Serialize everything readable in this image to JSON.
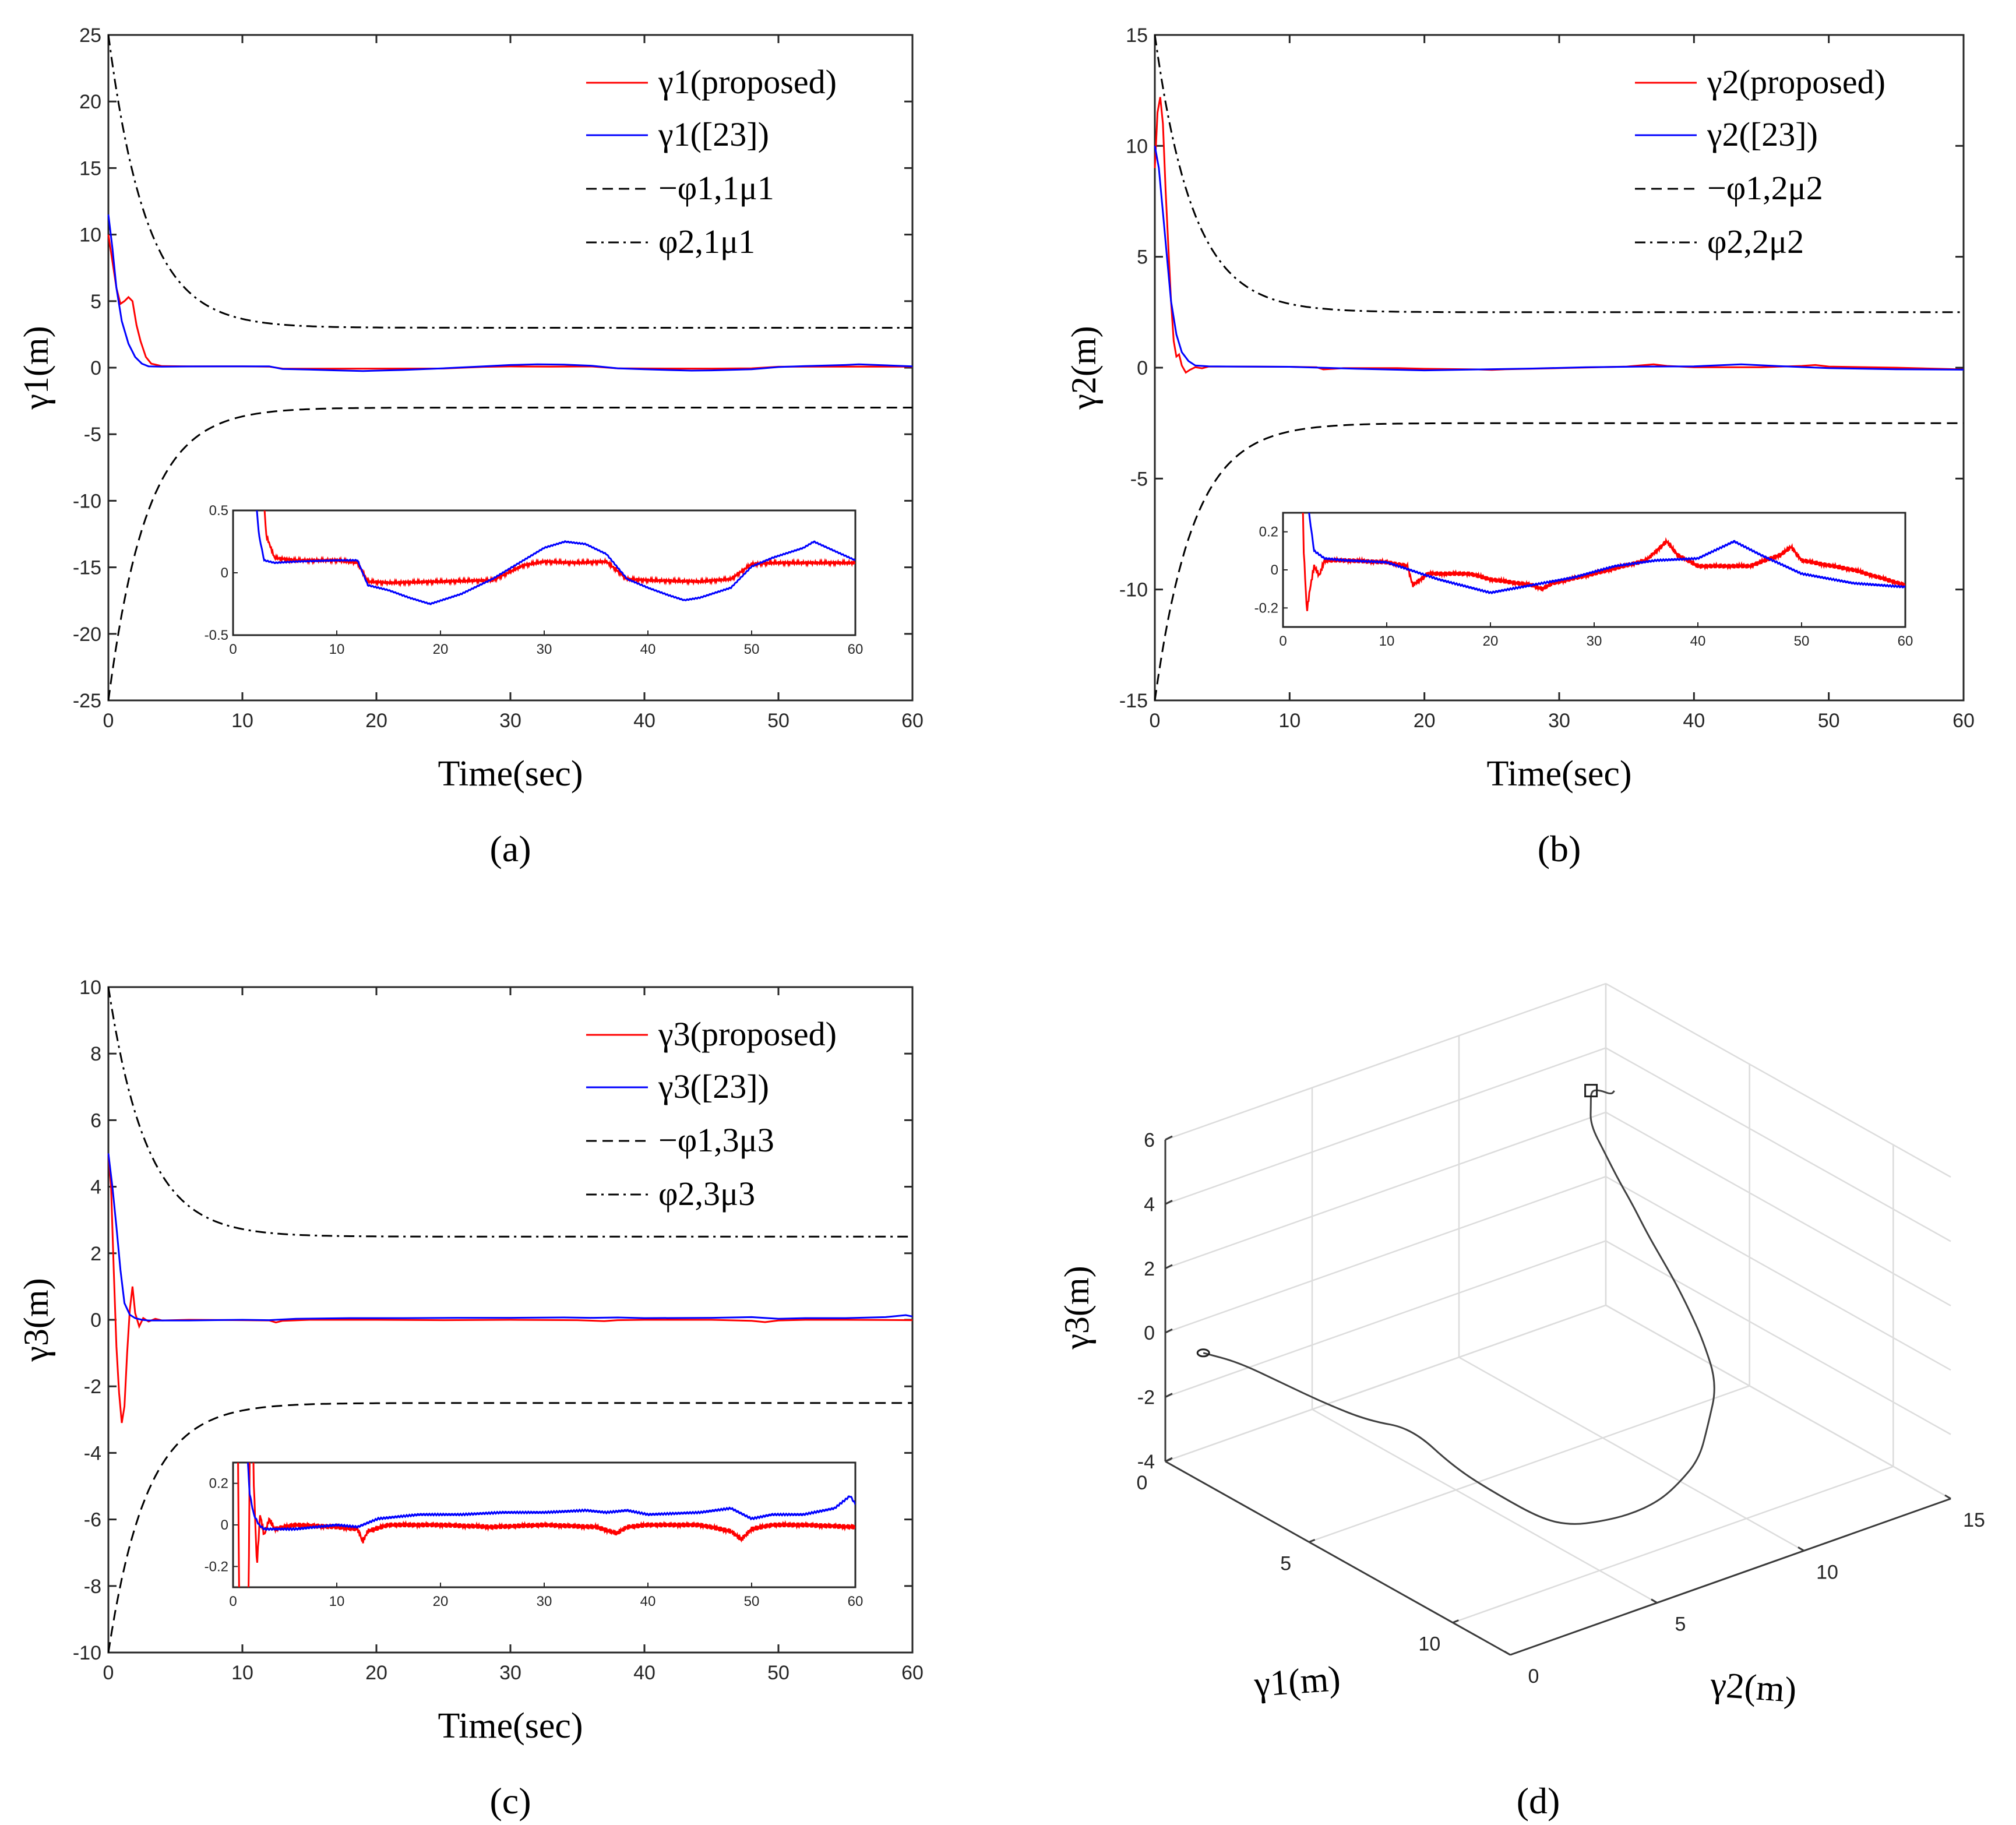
{
  "chart_data": [
    {
      "type": "line",
      "panel": "a",
      "caption": "(a)",
      "xlabel": "Time(sec)",
      "ylabel": "γ1(m)",
      "xlim": [
        0,
        60
      ],
      "ylim": [
        -25,
        25
      ],
      "xticks": [
        "0",
        "10",
        "20",
        "30",
        "40",
        "50",
        "60"
      ],
      "yticks": [
        "-25",
        "-20",
        "-15",
        "-10",
        "-5",
        "0",
        "5",
        "10",
        "15",
        "20",
        "25"
      ],
      "A": 25,
      "B": 3,
      "k": 0.35,
      "legend": [
        "γ1(proposed)",
        "γ1([23])",
        "−φ1,1μ1",
        "φ2,1μ1"
      ],
      "series": [
        {
          "name": "γ1(proposed)",
          "color": "#ff0000",
          "x": [
            0,
            0.3,
            0.6,
            0.9,
            1.2,
            1.5,
            1.8,
            2.1,
            2.4,
            2.8,
            3.2,
            4,
            6,
            10,
            12,
            13,
            15,
            20,
            25,
            28,
            30,
            33,
            36,
            38,
            40,
            45,
            48,
            50,
            52,
            55,
            60
          ],
          "y": [
            10,
            8,
            6,
            4.8,
            5,
            5.3,
            5,
            3.2,
            2.0,
            0.8,
            0.3,
            0.12,
            0.1,
            0.1,
            0.08,
            -0.07,
            -0.08,
            -0.07,
            -0.06,
            0.06,
            0.09,
            0.08,
            0.09,
            -0.05,
            -0.06,
            -0.07,
            -0.05,
            0.07,
            0.08,
            0.08,
            0.08
          ]
        },
        {
          "name": "γ1([23])",
          "color": "#0000ff",
          "x": [
            0,
            0.3,
            0.6,
            1,
            1.5,
            2,
            2.5,
            3,
            4,
            6,
            10,
            12,
            13,
            15,
            17,
            19,
            22,
            25,
            28,
            30,
            32,
            34,
            36,
            38,
            40,
            42,
            43.5,
            45,
            48,
            50,
            52,
            55,
            56,
            60
          ],
          "y": [
            11.5,
            9,
            6,
            3.5,
            1.8,
            0.8,
            0.3,
            0.1,
            0.08,
            0.09,
            0.1,
            0.1,
            -0.1,
            -0.14,
            -0.2,
            -0.25,
            -0.17,
            -0.05,
            0.1,
            0.2,
            0.25,
            0.23,
            0.15,
            -0.05,
            -0.12,
            -0.18,
            -0.22,
            -0.2,
            -0.12,
            0.05,
            0.12,
            0.2,
            0.25,
            0.1
          ]
        }
      ],
      "inset": {
        "xlim": [
          0,
          60
        ],
        "ylim": [
          -0.5,
          0.5
        ],
        "xticks": [
          "0",
          "10",
          "20",
          "30",
          "40",
          "50",
          "60"
        ],
        "yticks": [
          "-0.5",
          "0",
          "0.5"
        ]
      }
    },
    {
      "type": "line",
      "panel": "b",
      "caption": "(b)",
      "xlabel": "Time(sec)",
      "ylabel": "γ2(m)",
      "xlim": [
        0,
        60
      ],
      "ylim": [
        -15,
        15
      ],
      "xticks": [
        "0",
        "10",
        "20",
        "30",
        "40",
        "50",
        "60"
      ],
      "yticks": [
        "-15",
        "-10",
        "-5",
        "0",
        "5",
        "10",
        "15"
      ],
      "A": 15,
      "B": 2.5,
      "k": 0.35,
      "legend": [
        "γ2(proposed)",
        "γ2([23])",
        "−φ1,2μ2",
        "φ2,2μ2"
      ],
      "series": [
        {
          "name": "γ2(proposed)",
          "color": "#ff0000",
          "x": [
            0,
            0.2,
            0.4,
            0.6,
            0.8,
            1.0,
            1.2,
            1.4,
            1.6,
            1.8,
            2.0,
            2.3,
            2.6,
            3.0,
            3.5,
            4,
            6,
            10,
            12,
            12.5,
            14,
            18,
            20,
            24,
            25,
            26,
            30,
            35,
            37,
            38,
            40,
            45,
            48,
            49,
            50,
            55,
            60
          ],
          "y": [
            9,
            11.5,
            12.2,
            11,
            8,
            5.5,
            3,
            1.2,
            0.5,
            0.6,
            0.1,
            -0.22,
            -0.1,
            0.02,
            -0.03,
            0.05,
            0.05,
            0.04,
            0.02,
            -0.08,
            -0.02,
            -0.02,
            -0.05,
            -0.08,
            -0.1,
            -0.07,
            -0.02,
            0.05,
            0.15,
            0.08,
            0.02,
            0.02,
            0.08,
            0.12,
            0.05,
            0.0,
            -0.08
          ]
        },
        {
          "name": "γ2([23])",
          "color": "#0000ff",
          "x": [
            0,
            0.3,
            0.6,
            0.9,
            1.2,
            1.6,
            2,
            2.5,
            3,
            4,
            6,
            10,
            15,
            20,
            24,
            28,
            32,
            36,
            40,
            43.5,
            46,
            50,
            55,
            60
          ],
          "y": [
            10,
            9,
            7,
            5,
            3,
            1.5,
            0.7,
            0.3,
            0.1,
            0.06,
            0.05,
            0.04,
            -0.05,
            -0.12,
            -0.08,
            -0.04,
            0.02,
            0.05,
            0.06,
            0.15,
            0.08,
            -0.02,
            -0.07,
            -0.09
          ]
        }
      ],
      "inset": {
        "xlim": [
          0,
          60
        ],
        "ylim": [
          -0.3,
          0.3
        ],
        "xticks": [
          "0",
          "10",
          "20",
          "30",
          "40",
          "50",
          "60"
        ],
        "yticks": [
          "-0.2",
          "0",
          "0.2"
        ]
      }
    },
    {
      "type": "line",
      "panel": "c",
      "caption": "(c)",
      "xlabel": "Time(sec)",
      "ylabel": "γ3(m)",
      "xlim": [
        0,
        60
      ],
      "ylim": [
        -10,
        10
      ],
      "xticks": [
        "0",
        "10",
        "20",
        "30",
        "40",
        "50",
        "60"
      ],
      "yticks": [
        "-10",
        "-8",
        "-6",
        "-4",
        "-2",
        "0",
        "2",
        "4",
        "6",
        "8",
        "10"
      ],
      "A": 10,
      "B": 2.5,
      "k": 0.35,
      "legend": [
        "γ3(proposed)",
        "γ3([23])",
        "−φ1,3μ3",
        "φ2,3μ3"
      ],
      "series": [
        {
          "name": "γ3(proposed)",
          "color": "#ff0000",
          "x": [
            0,
            0.2,
            0.4,
            0.6,
            0.8,
            1.0,
            1.2,
            1.4,
            1.6,
            1.8,
            2.0,
            2.3,
            2.6,
            3.0,
            3.5,
            4,
            6,
            10,
            12,
            12.5,
            13,
            15,
            20,
            25,
            30,
            35,
            37,
            38,
            40,
            45,
            48,
            49,
            50,
            52,
            55,
            60
          ],
          "y": [
            5,
            4,
            1.5,
            -0.8,
            -2.2,
            -3.1,
            -2.6,
            -1,
            0.3,
            1,
            0.2,
            -0.2,
            0.05,
            -0.05,
            0.03,
            -0.02,
            0.0,
            -0.01,
            -0.02,
            -0.08,
            -0.03,
            0.0,
            0.0,
            -0.01,
            0.0,
            -0.01,
            -0.04,
            -0.01,
            0.0,
            0.0,
            -0.03,
            -0.07,
            -0.02,
            0.0,
            0.0,
            -0.01
          ]
        },
        {
          "name": "γ3([23])",
          "color": "#0000ff",
          "x": [
            0,
            0.3,
            0.6,
            0.9,
            1.2,
            1.6,
            2,
            2.5,
            3,
            4,
            6,
            10,
            12,
            14,
            18,
            22,
            26,
            30,
            34,
            36,
            38,
            40,
            45,
            48,
            50,
            52,
            55,
            58,
            59.5,
            60
          ],
          "y": [
            5,
            4,
            2.8,
            1.5,
            0.5,
            0.15,
            0.05,
            0.0,
            -0.02,
            -0.02,
            -0.02,
            0.0,
            -0.01,
            0.03,
            0.05,
            0.05,
            0.06,
            0.06,
            0.07,
            0.06,
            0.07,
            0.05,
            0.06,
            0.08,
            0.03,
            0.05,
            0.05,
            0.08,
            0.14,
            0.1
          ]
        }
      ],
      "inset": {
        "xlim": [
          0,
          60
        ],
        "ylim": [
          -0.3,
          0.3
        ],
        "xticks": [
          "0",
          "10",
          "20",
          "30",
          "40",
          "50",
          "60"
        ],
        "yticks": [
          "-0.2",
          "0",
          "0.2"
        ]
      }
    },
    {
      "type": "line3d",
      "panel": "d",
      "caption": "(d)",
      "xlabel": "γ1(m)",
      "ylabel": "γ2(m)",
      "zlabel": "γ3(m)",
      "xlim": [
        0,
        12
      ],
      "ylim": [
        0,
        15
      ],
      "zlim": [
        -4,
        6
      ],
      "xticks": [
        "0",
        "5",
        "10"
      ],
      "yticks": [
        "0",
        "5",
        "10",
        "15"
      ],
      "zticks": [
        "-4",
        "-2",
        "0",
        "2",
        "4",
        "6"
      ],
      "series": [
        {
          "name": "trajectory",
          "color": "#404040",
          "g1": [
            0.3,
            1,
            2,
            3,
            4,
            5,
            6,
            7,
            8,
            8.5,
            9,
            9.5,
            10,
            10.2,
            10.4,
            10.2,
            10,
            9,
            8,
            7,
            6,
            5,
            4,
            3,
            2,
            1,
            0.5,
            0.2,
            0.3,
            0.5,
            0.4
          ],
          "g2": [
            1,
            1.5,
            2,
            2.5,
            3,
            3.5,
            4,
            4.5,
            5,
            5.5,
            6,
            6.5,
            7,
            7.5,
            8,
            8.5,
            9,
            9.5,
            10,
            10.5,
            11,
            11.5,
            12,
            12.5,
            13,
            13.5,
            14,
            14.3,
            14.5,
            14.7,
            14.9
          ],
          "g3": [
            -0.8,
            -0.9,
            -1.2,
            -1.5,
            -1.7,
            -1.6,
            -2.5,
            -3,
            -3.4,
            -3.5,
            -3.3,
            -3,
            -2.5,
            -2,
            -1.3,
            -0.5,
            0.5,
            1.2,
            1.5,
            1.7,
            1.8,
            1.9,
            2.1,
            2.2,
            2.4,
            2.6,
            2.8,
            3.0,
            3.0,
            2.9,
            2.9
          ]
        }
      ]
    }
  ]
}
